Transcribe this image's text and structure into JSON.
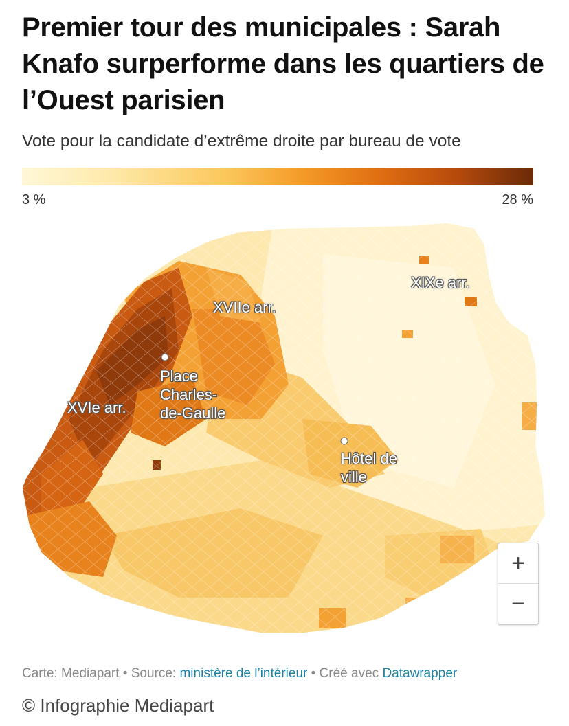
{
  "title": "Premier tour des municipales : Sarah Knafo surperforme dans les quartiers de l’Ouest parisien",
  "subtitle": "Vote pour la candidate d’extrême droite par bureau de vote",
  "legend": {
    "min_label": "3 %",
    "max_label": "28 %",
    "colors": [
      "#fff7d9",
      "#fde9a8",
      "#fbc75a",
      "#f49a28",
      "#e06e12",
      "#b64a0c",
      "#6b2a08"
    ]
  },
  "map_labels": {
    "xix": "XIXe arr.",
    "xvii": "XVIIe arr.",
    "xvi": "XVIe arr.",
    "etoile": "Place\nCharles-\nde-Gaulle",
    "hotel": "Hôtel de\nville"
  },
  "zoom": {
    "in": "+",
    "out": "−"
  },
  "footer": {
    "carte": "Carte: Mediapart",
    "sep1": " • Source: ",
    "source_link": "ministère de l’intérieur",
    "sep2": " • Créé avec ",
    "tool_link": "Datawrapper"
  },
  "copyright": "© Infographie Mediapart"
}
